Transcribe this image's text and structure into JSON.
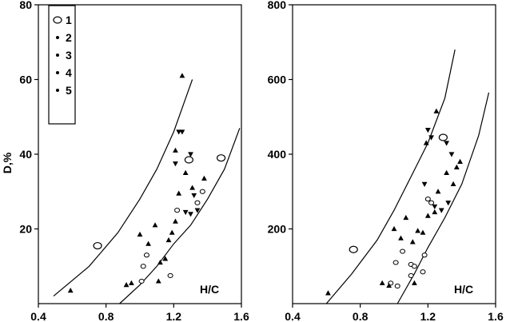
{
  "chart_data": [
    {
      "type": "scatter",
      "panel": "left",
      "ylabel": "D,%",
      "xlabel_annotation": "H/C",
      "xlim": [
        0.4,
        1.6
      ],
      "ylim": [
        0,
        80
      ],
      "x_ticks": [
        0.4,
        0.8,
        1.2,
        1.6
      ],
      "y_ticks": [
        20,
        40,
        60,
        80
      ],
      "legend": {
        "placement": "top-left",
        "entries": [
          {
            "label": "1",
            "marker": "open-circle"
          },
          {
            "label": "2",
            "marker": "filled-triangle-up"
          },
          {
            "label": "3",
            "marker": "filled-triangle-down"
          },
          {
            "label": "4",
            "marker": "small-open-circle"
          },
          {
            "label": "5",
            "marker": "small-filled-triangle-up"
          }
        ]
      },
      "boundary_curves": [
        {
          "x": [
            0.49,
            0.7,
            0.87,
            1.0,
            1.1,
            1.2,
            1.31
          ],
          "y": [
            2,
            10,
            19,
            28,
            36,
            46,
            60
          ]
        },
        {
          "x": [
            0.88,
            1.0,
            1.1,
            1.2,
            1.3,
            1.4,
            1.5,
            1.59
          ],
          "y": [
            0,
            5,
            10,
            16,
            21,
            28,
            36,
            47
          ]
        }
      ],
      "series": [
        {
          "marker": "open-circle",
          "points": [
            [
              0.75,
              15.5
            ],
            [
              1.29,
              38.5
            ],
            [
              1.48,
              39
            ]
          ]
        },
        {
          "marker": "small-open-circle",
          "points": [
            [
              1.04,
              13
            ],
            [
              1.02,
              10
            ],
            [
              1.01,
              6
            ],
            [
              1.18,
              7.5
            ],
            [
              1.22,
              25
            ],
            [
              1.34,
              27
            ],
            [
              1.37,
              30
            ]
          ]
        },
        {
          "marker": "filled-triangle-up",
          "points": [
            [
              0.59,
              3.5
            ],
            [
              0.92,
              5
            ],
            [
              0.95,
              5.5
            ],
            [
              1.0,
              18.5
            ],
            [
              1.05,
              16
            ],
            [
              1.09,
              21
            ],
            [
              1.12,
              11
            ],
            [
              1.15,
              12
            ],
            [
              1.17,
              17
            ],
            [
              1.19,
              19
            ],
            [
              1.21,
              22
            ],
            [
              1.23,
              29.5
            ],
            [
              1.27,
              35
            ],
            [
              1.31,
              31
            ],
            [
              1.38,
              33.5
            ],
            [
              1.25,
              61
            ],
            [
              1.21,
              41
            ],
            [
              1.11,
              6
            ]
          ]
        },
        {
          "marker": "filled-triangle-down",
          "points": [
            [
              1.23,
              46
            ],
            [
              1.25,
              46
            ],
            [
              1.21,
              37.5
            ],
            [
              1.27,
              24.5
            ],
            [
              1.3,
              40
            ],
            [
              1.3,
              24
            ],
            [
              1.34,
              25
            ],
            [
              1.32,
              29
            ]
          ]
        }
      ]
    },
    {
      "type": "scatter",
      "panel": "right",
      "ylabel": "",
      "xlabel_annotation": "H/C",
      "xlim": [
        0.4,
        1.6
      ],
      "ylim": [
        0,
        800
      ],
      "x_ticks": [
        0.4,
        0.8,
        1.2,
        1.6
      ],
      "y_ticks": [
        200,
        400,
        600,
        800
      ],
      "boundary_curves": [
        {
          "x": [
            0.6,
            0.75,
            0.9,
            1.0,
            1.1,
            1.2,
            1.3,
            1.36
          ],
          "y": [
            0,
            80,
            170,
            250,
            340,
            430,
            550,
            680
          ]
        },
        {
          "x": [
            1.02,
            1.12,
            1.2,
            1.3,
            1.4,
            1.5,
            1.56
          ],
          "y": [
            0,
            80,
            150,
            230,
            320,
            450,
            565
          ]
        }
      ],
      "series": [
        {
          "marker": "open-circle",
          "points": [
            [
              0.76,
              145
            ],
            [
              1.29,
              445
            ]
          ]
        },
        {
          "marker": "small-open-circle",
          "points": [
            [
              0.98,
              55
            ],
            [
              1.02,
              47
            ],
            [
              1.01,
              110
            ],
            [
              1.05,
              140
            ],
            [
              1.1,
              105
            ],
            [
              1.12,
              100
            ],
            [
              1.1,
              75
            ],
            [
              1.17,
              85
            ],
            [
              1.18,
              130
            ],
            [
              1.2,
              280
            ],
            [
              1.22,
              270
            ]
          ]
        },
        {
          "marker": "filled-triangle-up",
          "points": [
            [
              0.61,
              28
            ],
            [
              0.93,
              55
            ],
            [
              0.97,
              48
            ],
            [
              1.0,
              200
            ],
            [
              1.04,
              175
            ],
            [
              1.07,
              230
            ],
            [
              1.11,
              165
            ],
            [
              1.14,
              195
            ],
            [
              1.17,
              190
            ],
            [
              1.2,
              235
            ],
            [
              1.24,
              245
            ],
            [
              1.26,
              300
            ],
            [
              1.31,
              350
            ],
            [
              1.35,
              320
            ],
            [
              1.37,
              365
            ],
            [
              1.39,
              380
            ],
            [
              1.19,
              430
            ],
            [
              1.25,
              515
            ],
            [
              1.12,
              55
            ]
          ]
        },
        {
          "marker": "filled-triangle-down",
          "points": [
            [
              1.2,
              465
            ],
            [
              1.22,
              445
            ],
            [
              1.18,
              320
            ],
            [
              1.24,
              260
            ],
            [
              1.28,
              250
            ],
            [
              1.31,
              430
            ],
            [
              1.32,
              270
            ],
            [
              1.34,
              400
            ]
          ]
        }
      ]
    }
  ]
}
